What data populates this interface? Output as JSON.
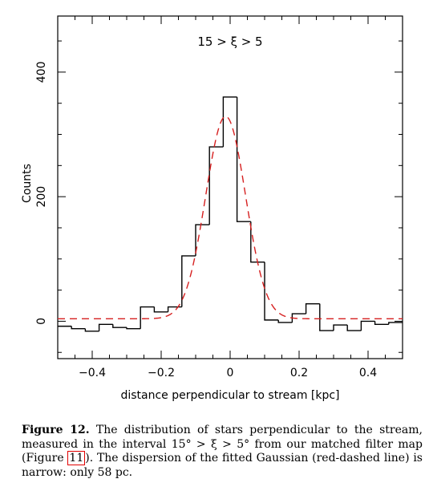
{
  "chart_data": {
    "type": "histogram",
    "title": "15 > ξ > 5",
    "xlabel": "distance perpendicular to stream [kpc]",
    "ylabel": "Counts",
    "xlim": [
      -0.5,
      0.5
    ],
    "ylim": [
      -60,
      490
    ],
    "xticks": [
      -0.4,
      -0.2,
      0,
      0.2,
      0.4
    ],
    "xtick_labels": [
      "−0.4",
      "−0.2",
      "0",
      "0.2",
      "0.4"
    ],
    "yticks": [
      0,
      200,
      400
    ],
    "ytick_labels": [
      "0",
      "200",
      "400"
    ],
    "grid": false,
    "bin_width": 0.04,
    "bin_left_edges": [
      -0.5,
      -0.46,
      -0.42,
      -0.38,
      -0.34,
      -0.3,
      -0.26,
      -0.22,
      -0.18,
      -0.14,
      -0.1,
      -0.06,
      -0.02,
      0.02,
      0.06,
      0.1,
      0.14,
      0.18,
      0.22,
      0.26,
      0.3,
      0.34,
      0.38,
      0.42,
      0.46
    ],
    "series": [
      {
        "kind": "step",
        "color": "#000000",
        "values": [
          -8,
          -12,
          -16,
          -5,
          -10,
          -12,
          23,
          15,
          23,
          105,
          155,
          280,
          360,
          160,
          95,
          2,
          -2,
          12,
          28,
          -15,
          -6,
          -15,
          0,
          -5,
          -2
        ]
      },
      {
        "kind": "gaussian-fit",
        "color": "#d62020",
        "style": "dashed",
        "amplitude": 325,
        "mean": -0.013,
        "sigma": 0.058,
        "baseline": 4
      }
    ],
    "annotations": {
      "fit_sigma_pc": 58
    }
  },
  "caption": {
    "label": "Figure 12.",
    "text_a": " The distribution of stars perpendicular to the stream, measured in the interval 15° > ξ > 5° from our matched filter map (Figure ",
    "ref": "11",
    "text_b": "). The dispersion of the fitted Gaussian (red-dashed line) is narrow: only 58 pc."
  }
}
